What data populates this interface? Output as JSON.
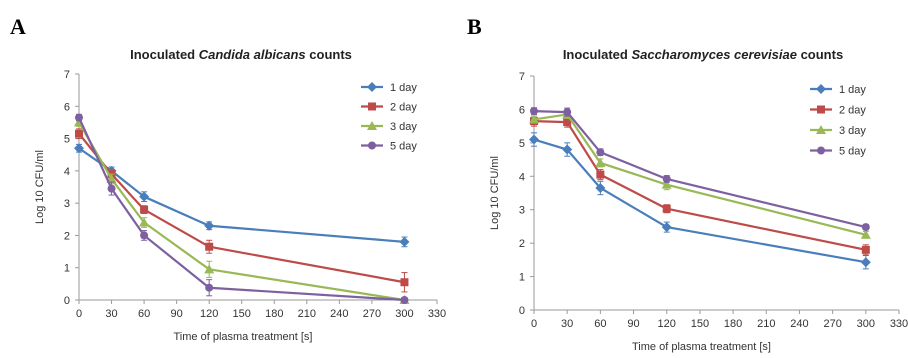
{
  "colors": {
    "1 day": "#4a7ebb",
    "2 day": "#be4b48",
    "3 day": "#98b954",
    "5 day": "#7d60a0",
    "axis": "#9a9a9a"
  },
  "chart_data": [
    {
      "panel": "A",
      "type": "line",
      "title_prefix": "Inoculated ",
      "title_italic": "Candida albicans",
      "title_suffix": " counts",
      "xlabel": "Time of plasma treatment [s]",
      "ylabel": "Log 10 CFU/ml",
      "x": [
        0,
        30,
        60,
        120,
        300
      ],
      "xlim": [
        0,
        330
      ],
      "ylim": [
        0,
        7
      ],
      "xticks": [
        0,
        30,
        60,
        90,
        120,
        150,
        180,
        210,
        240,
        270,
        300,
        330
      ],
      "yticks": [
        0,
        1,
        2,
        3,
        4,
        5,
        6,
        7
      ],
      "grid": false,
      "legend_position": "top-right",
      "series": [
        {
          "name": "1 day",
          "marker": "diamond",
          "values": [
            4.7,
            4.0,
            3.2,
            2.3,
            1.8
          ],
          "errors": [
            0.12,
            0.12,
            0.15,
            0.12,
            0.15
          ]
        },
        {
          "name": "2 day",
          "marker": "square",
          "values": [
            5.15,
            3.9,
            2.8,
            1.65,
            0.55
          ],
          "errors": [
            0.15,
            0.12,
            0.12,
            0.2,
            0.3
          ]
        },
        {
          "name": "3 day",
          "marker": "triangle",
          "values": [
            5.5,
            3.75,
            2.4,
            0.95,
            0.0
          ],
          "errors": [
            0.12,
            0.15,
            0.15,
            0.25,
            0.05
          ]
        },
        {
          "name": "5 day",
          "marker": "circle",
          "values": [
            5.65,
            3.45,
            2.0,
            0.38,
            0.0
          ],
          "errors": [
            0.1,
            0.2,
            0.15,
            0.25,
            0.05
          ]
        }
      ]
    },
    {
      "panel": "B",
      "type": "line",
      "title_prefix": "Inoculated ",
      "title_italic": "Saccharomyces cerevisiae",
      "title_suffix": " counts",
      "xlabel": "Time of plasma treatment [s]",
      "ylabel": "Log 10 CFU/ml",
      "x": [
        0,
        30,
        60,
        120,
        300
      ],
      "xlim": [
        0,
        330
      ],
      "ylim": [
        0,
        7
      ],
      "xticks": [
        0,
        30,
        60,
        90,
        120,
        150,
        180,
        210,
        240,
        270,
        300,
        330
      ],
      "yticks": [
        0,
        1,
        2,
        3,
        4,
        5,
        6,
        7
      ],
      "grid": false,
      "legend_position": "top-right",
      "series": [
        {
          "name": "1 day",
          "marker": "diamond",
          "values": [
            5.1,
            4.8,
            3.65,
            2.48,
            1.43
          ],
          "errors": [
            0.2,
            0.2,
            0.2,
            0.15,
            0.2
          ]
        },
        {
          "name": "2 day",
          "marker": "square",
          "values": [
            5.65,
            5.62,
            4.05,
            3.03,
            1.8
          ],
          "errors": [
            0.15,
            0.15,
            0.15,
            0.12,
            0.15
          ]
        },
        {
          "name": "3 day",
          "marker": "triangle",
          "values": [
            5.7,
            5.85,
            4.4,
            3.75,
            2.25
          ],
          "errors": [
            0.1,
            0.12,
            0.12,
            0.15,
            0.1
          ]
        },
        {
          "name": "5 day",
          "marker": "circle",
          "values": [
            5.95,
            5.92,
            4.72,
            3.92,
            2.48
          ],
          "errors": [
            0.1,
            0.12,
            0.1,
            0.1,
            0.08
          ]
        }
      ]
    }
  ]
}
